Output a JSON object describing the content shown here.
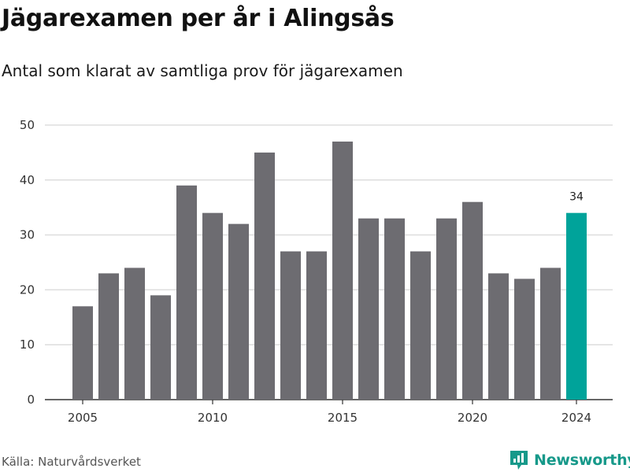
{
  "title": "Jägarexamen per år i Alingsås",
  "subtitle": "Antal som klarat av samtliga prov för jägarexamen",
  "source": "Källa: Naturvårdsverket",
  "brand": {
    "name": "Newsworthy",
    "icon": "newsworthy-logo-icon",
    "color": "#17998a"
  },
  "colors": {
    "bar": "#6d6c71",
    "highlight": "#00a39a",
    "grid": "#dddddd",
    "axis": "#333333"
  },
  "chart_data": {
    "type": "bar",
    "title": "Jägarexamen per år i Alingsås",
    "subtitle": "Antal som klarat av samtliga prov för jägarexamen",
    "xlabel": "",
    "ylabel": "",
    "categories": [
      "2005",
      "2006",
      "2007",
      "2008",
      "2009",
      "2010",
      "2011",
      "2012",
      "2013",
      "2014",
      "2015",
      "2016",
      "2017",
      "2018",
      "2019",
      "2020",
      "2021",
      "2022",
      "2023",
      "2024"
    ],
    "values": [
      17,
      23,
      24,
      19,
      39,
      34,
      32,
      45,
      27,
      27,
      47,
      33,
      33,
      27,
      33,
      36,
      23,
      22,
      24,
      34
    ],
    "ylim": [
      0,
      50
    ],
    "yticks": [
      0,
      10,
      20,
      30,
      40,
      50
    ],
    "xtick_labels": [
      "2005",
      "2010",
      "2015",
      "2020",
      "2024"
    ],
    "highlight": {
      "category": "2024",
      "label": "34"
    },
    "grid": true,
    "legend": "none"
  }
}
